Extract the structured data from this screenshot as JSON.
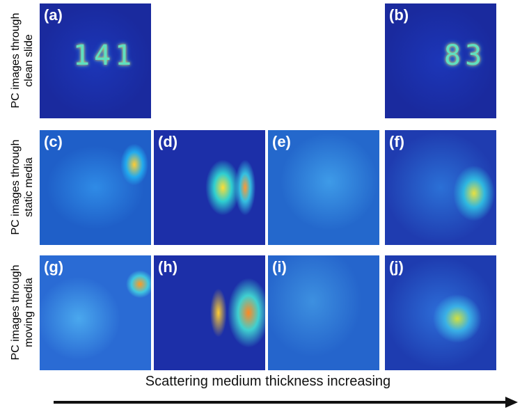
{
  "row_labels": [
    [
      "PC images through",
      "clean slide"
    ],
    [
      "PC images through",
      "static media"
    ],
    [
      "PC images through",
      "moving media"
    ]
  ],
  "panels": [
    {
      "label": "(a)",
      "digits": "141"
    },
    {
      "label": "(b)",
      "digits": "83"
    },
    {
      "label": "(c)"
    },
    {
      "label": "(d)"
    },
    {
      "label": "(e)"
    },
    {
      "label": "(f)"
    },
    {
      "label": "(g)"
    },
    {
      "label": "(h)"
    },
    {
      "label": "(i)"
    },
    {
      "label": "(j)"
    }
  ],
  "caption": "Scattering medium thickness increasing"
}
